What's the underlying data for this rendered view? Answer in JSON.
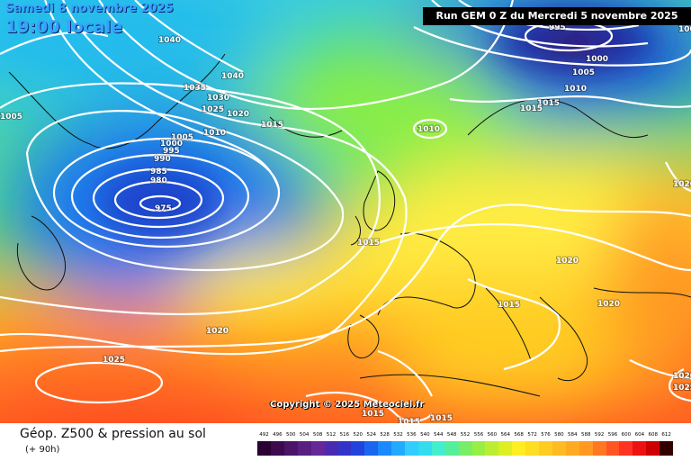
{
  "header": {
    "date": "Samedi 8 novembre 2025",
    "local_time": "19:00 locale",
    "run_info": "Run GEM 0 Z du Mercredi 5 novembre 2025"
  },
  "copyright": "Copyright © 2025 Meteociel.fr",
  "footer": {
    "title": "Géop. Z500 & pression au sol",
    "lead": "(+ 90h)"
  },
  "legend": {
    "values": [
      "492",
      "496",
      "500",
      "504",
      "508",
      "512",
      "516",
      "520",
      "524",
      "528",
      "532",
      "536",
      "540",
      "544",
      "548",
      "552",
      "556",
      "560",
      "564",
      "568",
      "572",
      "576",
      "580",
      "584",
      "588",
      "592",
      "596",
      "600",
      "604",
      "608",
      "612"
    ],
    "colors": [
      "#2b0033",
      "#3d0a4d",
      "#4b1466",
      "#581e80",
      "#662899",
      "#4a2ab0",
      "#3333c8",
      "#2244dd",
      "#1a66ee",
      "#1a88ff",
      "#22aaff",
      "#33ccff",
      "#33ddee",
      "#44eecc",
      "#55ee99",
      "#77ee66",
      "#99ee44",
      "#bbee33",
      "#ddee22",
      "#ffee22",
      "#ffdd22",
      "#ffcc22",
      "#ffbb22",
      "#ffaa22",
      "#ff9922",
      "#ff7722",
      "#ff5522",
      "#ff3322",
      "#ee1111",
      "#cc0000",
      "#330000"
    ]
  },
  "pressure_labels": [
    {
      "text": "1040"
    },
    {
      "text": "1040"
    },
    {
      "text": "1035"
    },
    {
      "text": "1030"
    },
    {
      "text": "1025"
    },
    {
      "text": "1020"
    },
    {
      "text": "1015"
    },
    {
      "text": "1010"
    },
    {
      "text": "1005"
    },
    {
      "text": "1005"
    },
    {
      "text": "1000"
    },
    {
      "text": "995"
    },
    {
      "text": "990"
    },
    {
      "text": "985"
    },
    {
      "text": "980"
    },
    {
      "text": "975"
    },
    {
      "text": "1010"
    },
    {
      "text": "1015"
    },
    {
      "text": "1020"
    },
    {
      "text": "1015"
    },
    {
      "text": "1020"
    },
    {
      "text": "1020"
    },
    {
      "text": "1025"
    },
    {
      "text": "995"
    },
    {
      "text": "1000"
    },
    {
      "text": "1005"
    },
    {
      "text": "1010"
    },
    {
      "text": "1015"
    },
    {
      "text": "1015"
    },
    {
      "text": "1015"
    },
    {
      "text": "1015"
    },
    {
      "text": "1015"
    },
    {
      "text": "1020"
    },
    {
      "text": "1025"
    },
    {
      "text": "1005"
    },
    {
      "text": "1020"
    }
  ]
}
